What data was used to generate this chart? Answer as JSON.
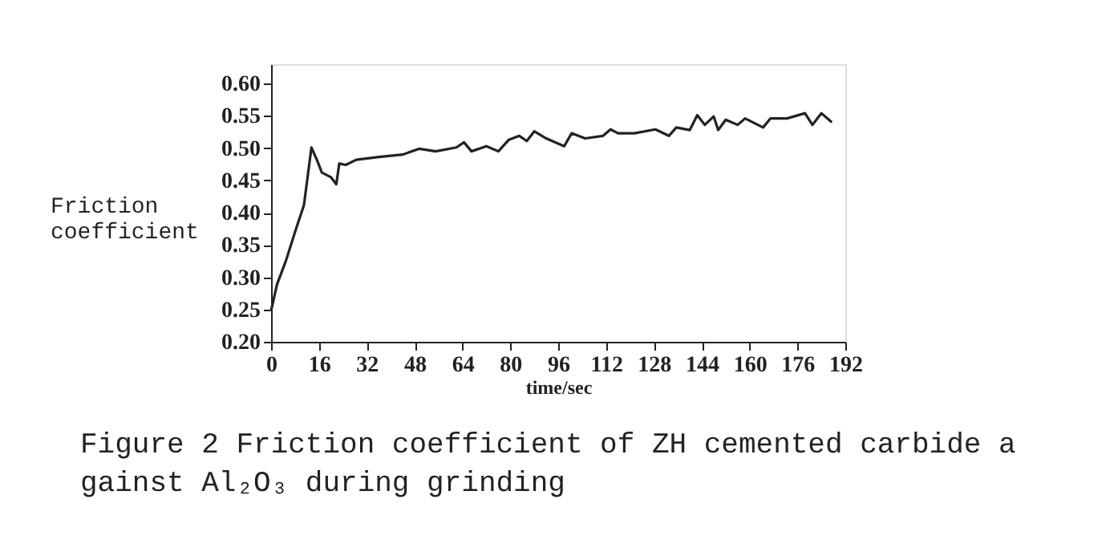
{
  "chart_data": {
    "type": "line",
    "xlabel": "time/sec",
    "ylabel": "Friction coefficient",
    "annotations": [
      "Figure 2 Friction coefficient of ZH cemented carbide against Al₂O₃ during grinding"
    ],
    "xlim": [
      0,
      192
    ],
    "xticks": [
      0,
      16,
      32,
      48,
      64,
      80,
      96,
      112,
      128,
      144,
      160,
      176,
      192
    ],
    "ylim": [
      0.2,
      0.63
    ],
    "yticks": [
      {
        "value": 0.2,
        "label": "0.20"
      },
      0.25,
      {
        "value": 0.3,
        "label": "0.30"
      },
      0.35,
      {
        "value": 0.4,
        "label": "0.40"
      },
      0.45,
      {
        "value": 0.5,
        "label": "0.50"
      },
      0.55,
      {
        "value": 0.6,
        "label": "0.60"
      }
    ],
    "grid": false,
    "marker": "none",
    "line_style": "solid",
    "series": [
      {
        "color": "#222222",
        "x": [
          0,
          2,
          5,
          8,
          11,
          13.5,
          15.3,
          17,
          20,
          21.8,
          22.8,
          25,
          28.5,
          35.5,
          44,
          49.5,
          55,
          62,
          64.5,
          67,
          72,
          76,
          79.5,
          83,
          85.5,
          88,
          92,
          98,
          100.5,
          105,
          111,
          113.5,
          116,
          121.5,
          128.5,
          133,
          135.5,
          140,
          142.5,
          145,
          148,
          149.5,
          152,
          156,
          158.5,
          164.5,
          167,
          172.5,
          178.5,
          181,
          184,
          187.5
        ],
        "values": [
          0.248,
          0.289,
          0.326,
          0.37,
          0.412,
          0.501,
          0.482,
          0.462,
          0.455,
          0.444,
          0.476,
          0.474,
          0.482,
          0.486,
          0.49,
          0.499,
          0.495,
          0.501,
          0.509,
          0.495,
          0.503,
          0.495,
          0.513,
          0.519,
          0.511,
          0.526,
          0.515,
          0.503,
          0.523,
          0.515,
          0.519,
          0.529,
          0.523,
          0.523,
          0.529,
          0.519,
          0.532,
          0.528,
          0.551,
          0.536,
          0.549,
          0.528,
          0.544,
          0.536,
          0.546,
          0.532,
          0.546,
          0.546,
          0.554,
          0.536,
          0.554,
          0.54
        ]
      }
    ]
  }
}
